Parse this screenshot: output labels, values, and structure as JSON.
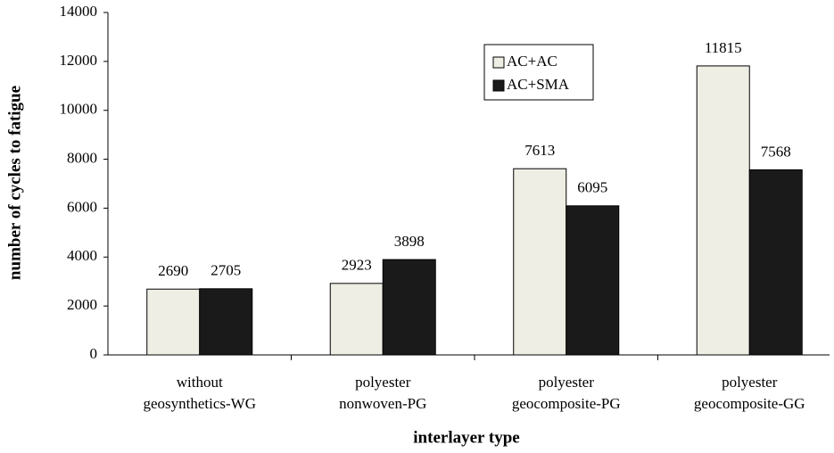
{
  "chart_data": {
    "type": "bar",
    "x_label": "interlayer  type",
    "y_label": "number of cycles to fatigue",
    "categories": [
      [
        "without",
        "geosynthetics-WG"
      ],
      [
        "polyester",
        "nonwoven-PG"
      ],
      [
        "polyester",
        "geocomposite-PG"
      ],
      [
        "polyester",
        "geocomposite-GG"
      ]
    ],
    "series": [
      {
        "name": "AC+AC",
        "color": "#eeeee4",
        "values": [
          2690,
          2923,
          7613,
          11815
        ]
      },
      {
        "name": "AC+SMA",
        "color": "#1a1a1a",
        "values": [
          2705,
          3898,
          6095,
          7568
        ]
      }
    ],
    "ylim": [
      0,
      14000
    ],
    "yticks": [
      0,
      2000,
      4000,
      6000,
      8000,
      10000,
      12000,
      14000
    ],
    "legend": "upper-center"
  }
}
